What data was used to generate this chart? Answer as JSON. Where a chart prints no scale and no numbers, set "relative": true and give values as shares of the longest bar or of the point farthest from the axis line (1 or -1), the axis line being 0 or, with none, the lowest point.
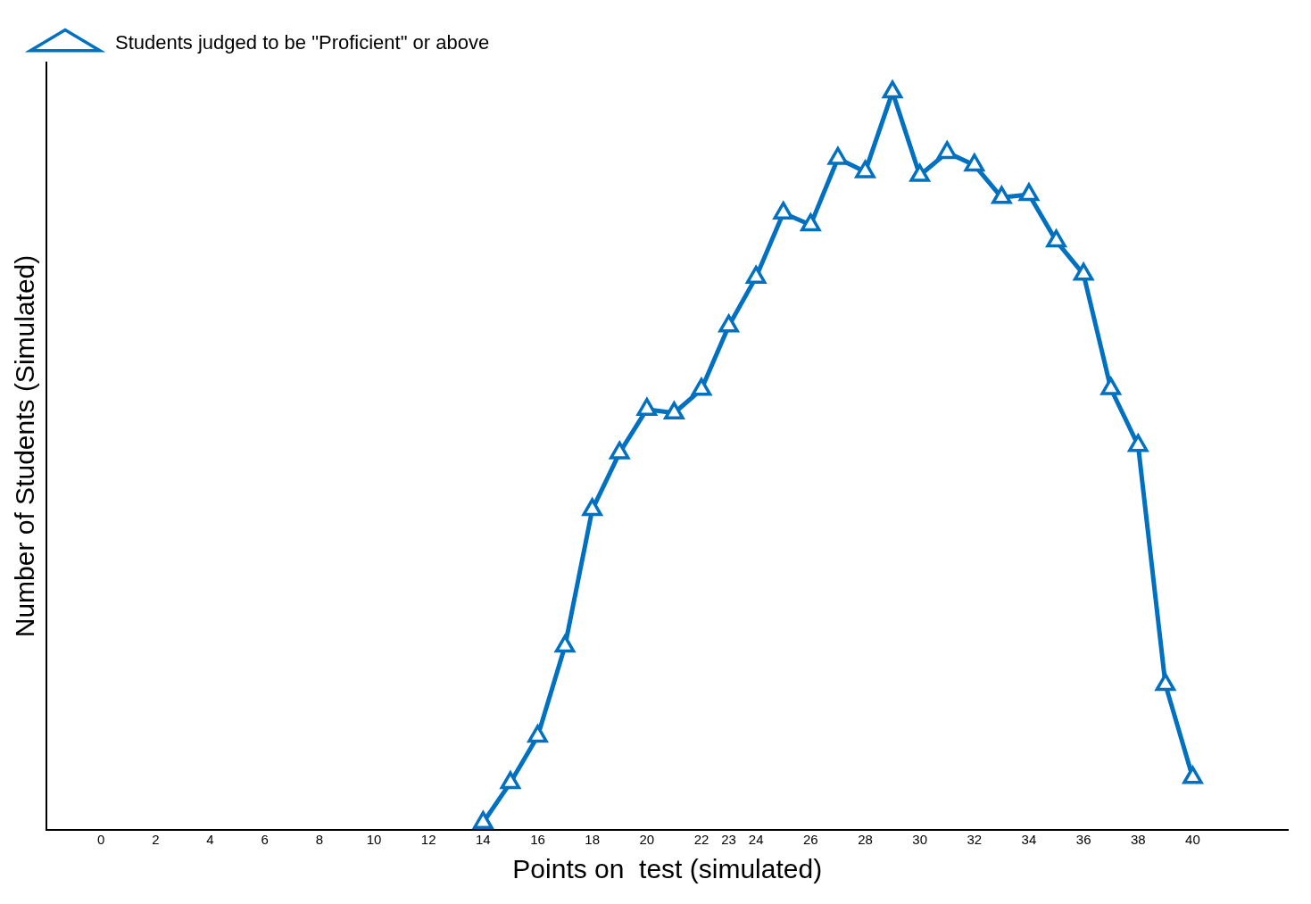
{
  "chart_data": {
    "type": "line",
    "xlabel": "Points on  test (simulated)",
    "ylabel": "Number of Students (Simulated)",
    "relative": true,
    "xlim": [
      -2,
      43.5
    ],
    "xticks": [
      0,
      2,
      4,
      6,
      8,
      10,
      12,
      14,
      16,
      18,
      20,
      22,
      23,
      24,
      26,
      28,
      30,
      32,
      34,
      36,
      38,
      40
    ],
    "x": [
      14,
      15,
      16,
      17,
      18,
      19,
      20,
      21,
      22,
      23,
      24,
      25,
      26,
      27,
      28,
      29,
      30,
      31,
      32,
      33,
      34,
      35,
      36,
      37,
      38,
      39,
      40
    ],
    "series": [
      {
        "name": "Students judged to be \"Proficient\" or above",
        "color": "#0070c0",
        "values": [
          0.01,
          0.064,
          0.127,
          0.249,
          0.434,
          0.511,
          0.57,
          0.565,
          0.597,
          0.683,
          0.749,
          0.836,
          0.82,
          0.91,
          0.892,
          1,
          0.887,
          0.918,
          0.901,
          0.857,
          0.861,
          0.798,
          0.753,
          0.598,
          0.521,
          0.197,
          0.071
        ]
      }
    ],
    "grid": false,
    "legend": "top left",
    "marker": "triangle",
    "line_style": "solid"
  }
}
